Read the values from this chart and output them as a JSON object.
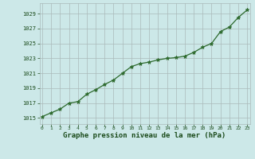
{
  "x": [
    0,
    1,
    2,
    3,
    4,
    5,
    6,
    7,
    8,
    9,
    10,
    11,
    12,
    13,
    14,
    15,
    16,
    17,
    18,
    19,
    20,
    21,
    22,
    23
  ],
  "y": [
    1015.2,
    1015.7,
    1016.2,
    1017.0,
    1017.2,
    1018.2,
    1018.8,
    1019.5,
    1020.1,
    1021.0,
    1021.9,
    1022.3,
    1022.5,
    1022.8,
    1023.0,
    1023.1,
    1023.3,
    1023.8,
    1024.5,
    1025.0,
    1026.6,
    1027.2,
    1028.5,
    1029.5
  ],
  "line_color": "#2d6a2d",
  "marker": "*",
  "marker_color": "#2d6a2d",
  "bg_color": "#cce8e8",
  "grid_color": "#aababa",
  "xlabel": "Graphe pression niveau de la mer (hPa)",
  "xlabel_color": "#1a4a1a",
  "xlabel_fontsize": 6.5,
  "ytick_labels": [
    "1015",
    "1017",
    "1019",
    "1021",
    "1023",
    "1025",
    "1027",
    "1029"
  ],
  "yticks": [
    1015,
    1017,
    1019,
    1021,
    1023,
    1025,
    1027,
    1029
  ],
  "xtick_labels": [
    "0",
    "1",
    "2",
    "3",
    "4",
    "5",
    "6",
    "7",
    "8",
    "9",
    "10",
    "11",
    "12",
    "13",
    "14",
    "15",
    "16",
    "17",
    "18",
    "19",
    "20",
    "21",
    "22",
    "23"
  ],
  "xticks": [
    0,
    1,
    2,
    3,
    4,
    5,
    6,
    7,
    8,
    9,
    10,
    11,
    12,
    13,
    14,
    15,
    16,
    17,
    18,
    19,
    20,
    21,
    22,
    23
  ],
  "ylim": [
    1014.2,
    1030.4
  ],
  "xlim": [
    -0.3,
    23.3
  ]
}
